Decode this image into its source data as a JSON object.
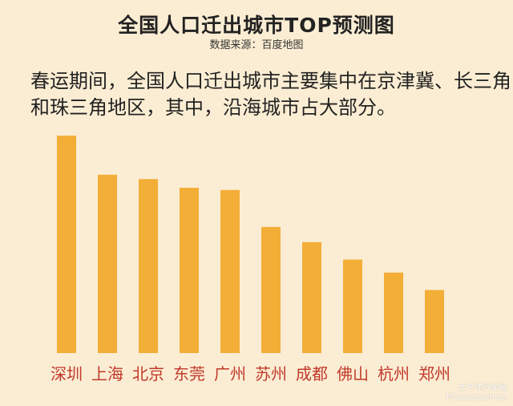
{
  "title": "全国人口迁出城市TOP预测图",
  "source": "数据来源：百度地图",
  "description": "春运期间，全国人口迁出城市主要集中在京津冀、长三角和珠三角地区，其中，沿海城市占大部分。",
  "watermark": {
    "line1": "太平洋汽车网",
    "line2": "PCauto.com.cn"
  },
  "colors": {
    "bar": "#f3ae38",
    "label": "#c0392b",
    "background": "#fbedd3"
  },
  "chart_data": {
    "type": "bar",
    "title": "全国人口迁出城市TOP预测图",
    "categories": [
      "深圳",
      "上海",
      "北京",
      "东莞",
      "广州",
      "苏州",
      "成都",
      "佛山",
      "杭州",
      "郑州"
    ],
    "values": [
      100,
      82,
      80,
      76,
      75,
      58,
      51,
      43,
      37,
      29
    ],
    "xlabel": "",
    "ylabel": "",
    "ylim": [
      0,
      100
    ],
    "grid": false,
    "legend": "none"
  }
}
